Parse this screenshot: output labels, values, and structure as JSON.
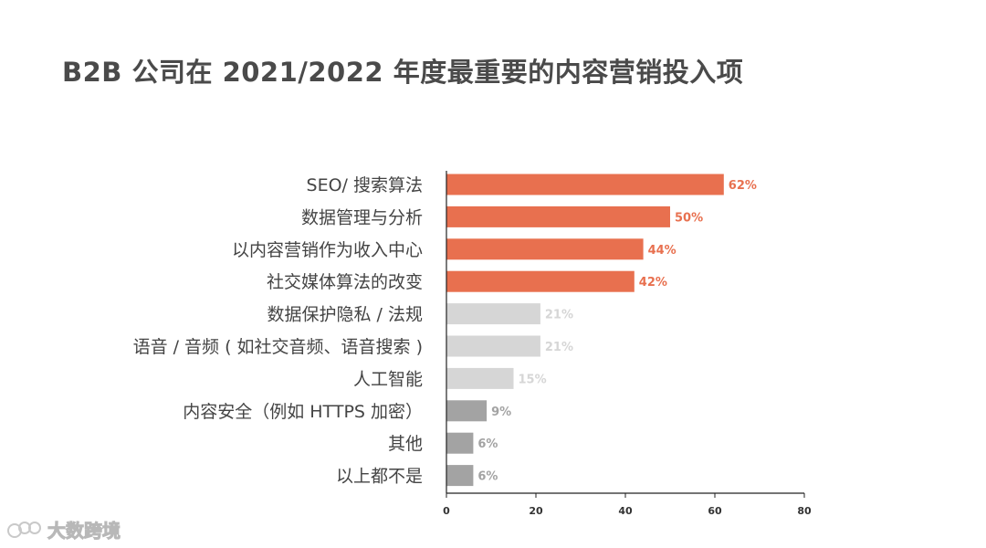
{
  "title": "B2B 公司在 2021/2022 年度最重要的内容营销投入项",
  "watermark": "大数跨境",
  "colors": {
    "accent": "#e8704f",
    "light": "#d6d6d6",
    "gray": "#a3a3a3",
    "axis": "#222222"
  },
  "chart_data": {
    "type": "bar",
    "orientation": "horizontal",
    "title": "B2B 公司在 2021/2022 年度最重要的内容营销投入项",
    "categories": [
      "SEO/ 搜索算法",
      "数据管理与分析",
      "以内容营销作为收入中心",
      "社交媒体算法的改变",
      "数据保护隐私 / 法规",
      "语音 / 音频 ( 如社交音频、语音搜索 )",
      "人工智能",
      "内容安全（例如 HTTPS 加密）",
      "其他",
      "以上都不是"
    ],
    "values": [
      62,
      50,
      44,
      42,
      21,
      21,
      15,
      9,
      6,
      6
    ],
    "value_labels": [
      "62%",
      "50%",
      "44%",
      "42%",
      "21%",
      "21%",
      "15%",
      "9%",
      "6%",
      "6%"
    ],
    "color_groups": [
      "accent",
      "accent",
      "accent",
      "accent",
      "light",
      "light",
      "light",
      "gray",
      "gray",
      "gray"
    ],
    "xlim": [
      0,
      80
    ],
    "xticks": [
      0,
      20,
      40,
      60,
      80
    ],
    "xlabel": "",
    "ylabel": "",
    "grid": false,
    "legend": "none"
  }
}
